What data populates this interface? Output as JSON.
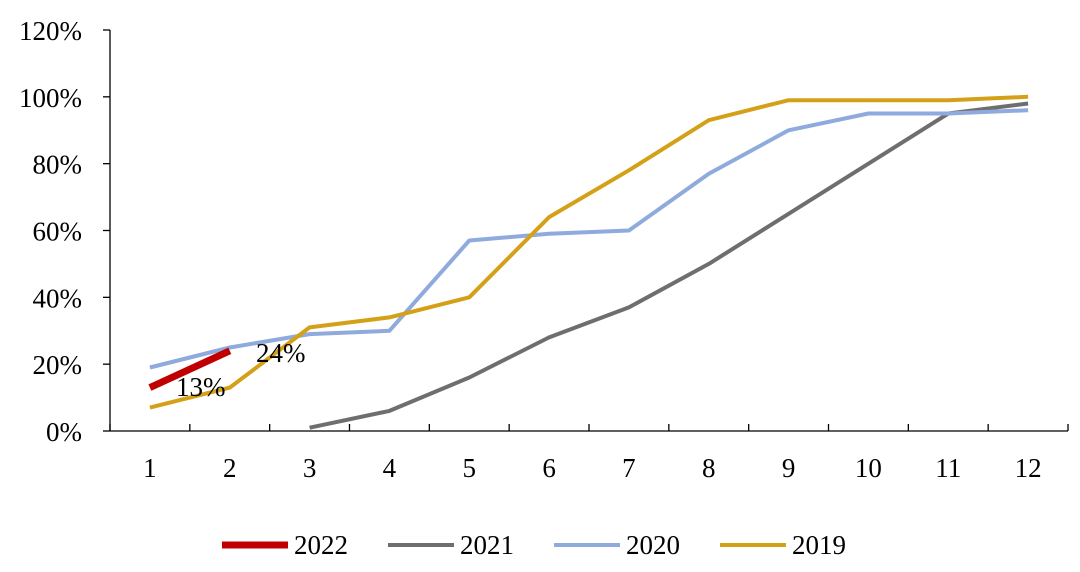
{
  "chart_data": {
    "type": "line",
    "title": "",
    "xlabel": "",
    "ylabel": "",
    "categories": [
      "1",
      "2",
      "3",
      "4",
      "5",
      "6",
      "7",
      "8",
      "9",
      "10",
      "11",
      "12"
    ],
    "y_ticks": [
      "0%",
      "20%",
      "40%",
      "60%",
      "80%",
      "100%",
      "120%"
    ],
    "ylim": [
      0,
      120
    ],
    "grid": false,
    "legend_position": "bottom",
    "series": [
      {
        "name": "2022",
        "color": "#c00000",
        "values": [
          13,
          24,
          null,
          null,
          null,
          null,
          null,
          null,
          null,
          null,
          null,
          null
        ]
      },
      {
        "name": "2021",
        "color": "#706d6e",
        "values": [
          null,
          null,
          1,
          6,
          16,
          28,
          37,
          50,
          65,
          80,
          95,
          98
        ]
      },
      {
        "name": "2020",
        "color": "#8faadc",
        "values": [
          19,
          25,
          29,
          30,
          57,
          59,
          60,
          77,
          90,
          95,
          95,
          96
        ]
      },
      {
        "name": "2019",
        "color": "#d4a017",
        "values": [
          7,
          13,
          31,
          34,
          40,
          64,
          78,
          93,
          99,
          99,
          99,
          100
        ]
      }
    ],
    "annotations": [
      {
        "text": "13%",
        "series": "2022",
        "category": "1"
      },
      {
        "text": "24%",
        "series": "2022",
        "category": "2"
      }
    ]
  }
}
